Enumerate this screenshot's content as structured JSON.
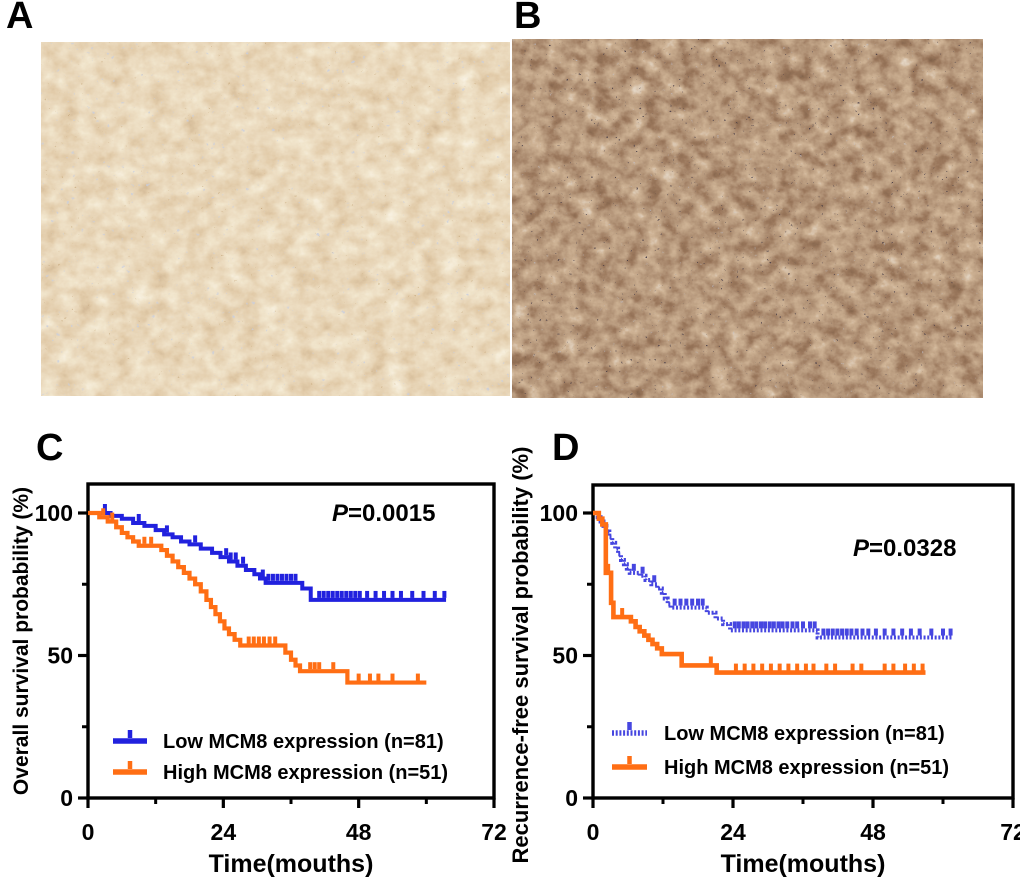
{
  "panels": [
    {
      "label": "A"
    },
    {
      "label": "B"
    },
    {
      "label": "C"
    },
    {
      "label": "D"
    }
  ],
  "micrographs": {
    "a_description": "IHC staining, low MCM8 expression (weak brown)",
    "b_description": "IHC staining, high MCM8 expression (strong brown)"
  },
  "colors": {
    "low_curve_c": "#2121DE",
    "low_curve_d": "#4646E0",
    "high_curve": "#FF6E14",
    "axis": "#000000"
  },
  "chart_data": [
    {
      "id": "C",
      "type": "line",
      "subtype": "kaplan-meier-step",
      "p_italic": "P",
      "p_rest": "=0.0015",
      "xlabel": "Time(mouths)",
      "ylabel": "Overall survival probability (%)",
      "xlim": [
        0,
        72
      ],
      "ylim": [
        0,
        110
      ],
      "xticks": [
        0,
        24,
        48,
        72
      ],
      "xticks_minor": [
        12,
        36,
        60
      ],
      "yticks": [
        0,
        50,
        100
      ],
      "yticks_minor": [
        25,
        75
      ],
      "grid": false,
      "legend_position": "lower-left-inside",
      "series": [
        {
          "name": "Low MCM8 expression (n=81)",
          "color": "#2121DE",
          "dash": "",
          "width": 4,
          "start": 100,
          "end_month": 63.5,
          "steps": [
            [
              4,
              99
            ],
            [
              6,
              98
            ],
            [
              8,
              96.5
            ],
            [
              10,
              95.5
            ],
            [
              12,
              94
            ],
            [
              13.5,
              92.5
            ],
            [
              15,
              91.5
            ],
            [
              16.5,
              90
            ],
            [
              18,
              89
            ],
            [
              20,
              87.5
            ],
            [
              22,
              86
            ],
            [
              23.5,
              84.5
            ],
            [
              25,
              83
            ],
            [
              26.5,
              81.5
            ],
            [
              28,
              80
            ],
            [
              29.5,
              78.5
            ],
            [
              30.5,
              77
            ],
            [
              31.5,
              75.5
            ],
            [
              38,
              73.5
            ],
            [
              39.5,
              69.5
            ]
          ],
          "censor_months": [
            3,
            9,
            14,
            19,
            24.5,
            25.3,
            26.2,
            27.5,
            31,
            32,
            32.8,
            33.6,
            34.4,
            35.2,
            36,
            36.8,
            41,
            41.8,
            42.6,
            43.4,
            44.2,
            45,
            45.8,
            46.6,
            47.4,
            48.2,
            49.5,
            51,
            52.5,
            54,
            55.5,
            57.5,
            59.5,
            61.5,
            63.2
          ]
        },
        {
          "name": "High MCM8 expression (n=51)",
          "color": "#FF6E14",
          "dash": "",
          "width": 4.2,
          "start": 100,
          "end_month": 60,
          "steps": [
            [
              2,
              98.5
            ],
            [
              3.5,
              97
            ],
            [
              5,
              95
            ],
            [
              6,
              93
            ],
            [
              7,
              91.5
            ],
            [
              8,
              90
            ],
            [
              9,
              88.5
            ],
            [
              13,
              87
            ],
            [
              14,
              85
            ],
            [
              15,
              83
            ],
            [
              16,
              81
            ],
            [
              17,
              79
            ],
            [
              18,
              77
            ],
            [
              19,
              75
            ],
            [
              20,
              72.5
            ],
            [
              21,
              69.5
            ],
            [
              21.8,
              67
            ],
            [
              22.6,
              64.5
            ],
            [
              23.4,
              62
            ],
            [
              24.2,
              59.5
            ],
            [
              25,
              57.5
            ],
            [
              26,
              55.5
            ],
            [
              27,
              53.5
            ],
            [
              35,
              51
            ],
            [
              36,
              48.5
            ],
            [
              36.8,
              46.5
            ],
            [
              37.6,
              44.5
            ],
            [
              46,
              40.5
            ]
          ],
          "censor_months": [
            2.7,
            4.3,
            10,
            11.2,
            28.5,
            29.4,
            30.3,
            31.2,
            32.2,
            33.2,
            39.4,
            40.2,
            41,
            43.5,
            48,
            50,
            51.5,
            54,
            58.5
          ]
        }
      ]
    },
    {
      "id": "D",
      "type": "line",
      "subtype": "kaplan-meier-step",
      "p_italic": "P",
      "p_rest": "=0.0328",
      "xlabel": "Time(mouths)",
      "ylabel": "Recurrence-free survival probability (%)",
      "xlim": [
        0,
        72
      ],
      "ylim": [
        0,
        110
      ],
      "xticks": [
        0,
        24,
        48,
        72
      ],
      "xticks_minor": [
        12,
        36,
        60
      ],
      "yticks": [
        0,
        50,
        100
      ],
      "yticks_minor": [
        25,
        75
      ],
      "grid": false,
      "legend_position": "lower-left-inside",
      "series": [
        {
          "name": "Low MCM8 expression (n=81)",
          "color": "#4646E0",
          "dash": "2,1.7",
          "width": 4,
          "start": 100,
          "end_month": 61.5,
          "steps": [
            [
              0.8,
              98.5
            ],
            [
              1.3,
              97
            ],
            [
              1.8,
              95.5
            ],
            [
              2.3,
              93.5
            ],
            [
              2.8,
              91.5
            ],
            [
              3.3,
              89.5
            ],
            [
              3.8,
              87.5
            ],
            [
              4.3,
              85.5
            ],
            [
              4.8,
              83.5
            ],
            [
              5.3,
              82
            ],
            [
              5.8,
              80.5
            ],
            [
              6.3,
              79
            ],
            [
              8,
              78
            ],
            [
              9,
              76.5
            ],
            [
              10,
              75
            ],
            [
              11,
              73.5
            ],
            [
              11.8,
              72
            ],
            [
              12.3,
              70
            ],
            [
              12.8,
              68
            ],
            [
              13.3,
              66.8
            ],
            [
              19.5,
              65
            ],
            [
              21,
              63
            ],
            [
              22.3,
              61
            ],
            [
              23.5,
              58.8
            ],
            [
              38.5,
              56.3
            ]
          ],
          "censor_months": [
            7,
            8.5,
            10.5,
            14,
            15,
            16,
            17,
            18,
            18.8,
            24.3,
            25,
            25.8,
            26.5,
            27.3,
            28,
            28.8,
            29.5,
            30.3,
            31,
            31.8,
            32.5,
            33.3,
            34.2,
            35,
            36,
            37.2,
            38,
            39.5,
            40.3,
            41.1,
            41.9,
            42.7,
            43.5,
            44.3,
            45.2,
            46.2,
            47.2,
            48.5,
            50,
            51.5,
            53,
            54.5,
            56,
            58,
            60,
            61.3
          ]
        },
        {
          "name": "High MCM8 expression (n=51)",
          "color": "#FF6E14",
          "dash": "",
          "width": 4.6,
          "start": 100,
          "end_month": 57,
          "steps": [
            [
              1,
              98
            ],
            [
              1.6,
              96
            ],
            [
              2.2,
              79
            ],
            [
              3.1,
              68.5
            ],
            [
              3.5,
              63.5
            ],
            [
              6.5,
              62
            ],
            [
              7.3,
              60
            ],
            [
              8,
              58.5
            ],
            [
              8.8,
              57
            ],
            [
              9.5,
              55.5
            ],
            [
              10.2,
              54
            ],
            [
              11,
              52.5
            ],
            [
              11.8,
              50.5
            ],
            [
              15.2,
              46.5
            ],
            [
              21.2,
              44
            ]
          ],
          "censor_months": [
            2.6,
            5,
            20.2,
            24.5,
            26,
            27.5,
            29,
            30.5,
            32,
            33.5,
            35,
            36.5,
            37.8,
            40,
            41.5,
            44.5,
            46,
            50,
            51.5,
            53.5,
            55,
            56.5
          ]
        }
      ]
    }
  ]
}
